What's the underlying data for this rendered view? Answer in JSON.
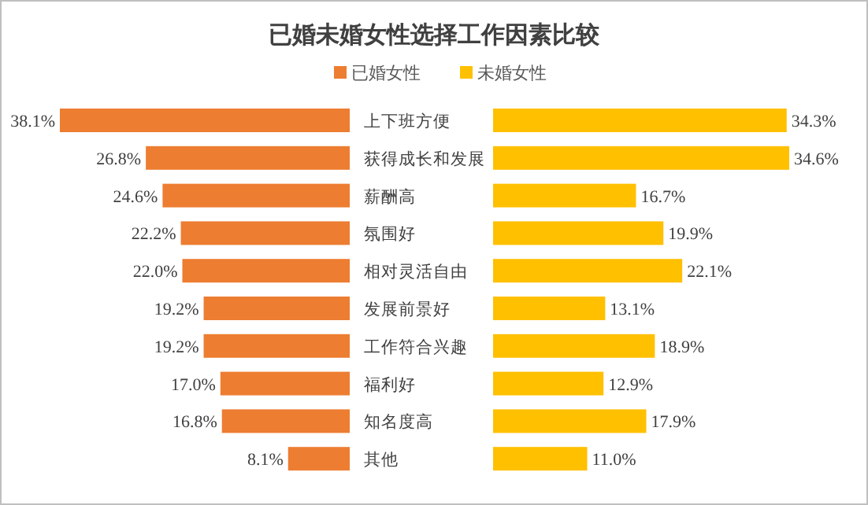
{
  "chart_data": [
    {
      "type": "bar",
      "orientation": "horizontal",
      "title": "已婚未婚女性选择工作因素比较",
      "legend": "top",
      "categories": [
        "上下班方便",
        "获得成长和发展",
        "薪酬高",
        "氛围好",
        "相对灵活自由",
        "发展前景好",
        "工作符合兴趣",
        "福利好",
        "知名度高",
        "其他"
      ],
      "series": [
        {
          "name": "已婚女性",
          "color": "#ed7d31",
          "values": [
            38.1,
            26.8,
            24.6,
            22.2,
            22.0,
            19.2,
            19.2,
            17.0,
            16.8,
            8.1
          ],
          "value_labels": [
            "38.1%",
            "26.8%",
            "24.6%",
            "22.2%",
            "22.0%",
            "19.2%",
            "19.2%",
            "17.0%",
            "16.8%",
            "8.1%"
          ]
        }
      ]
    },
    {
      "type": "bar",
      "orientation": "horizontal",
      "legend": "top",
      "series": [
        {
          "name": "未婚女性",
          "color": "#ffc000",
          "values": [
            34.3,
            34.6,
            16.7,
            19.9,
            22.1,
            13.1,
            18.9,
            12.9,
            17.9,
            11.0
          ],
          "value_labels": [
            "34.3%",
            "34.6%",
            "16.7%",
            "19.9%",
            "22.1%",
            "13.1%",
            "18.9%",
            "12.9%",
            "17.9%",
            "11.0%"
          ]
        }
      ]
    }
  ]
}
